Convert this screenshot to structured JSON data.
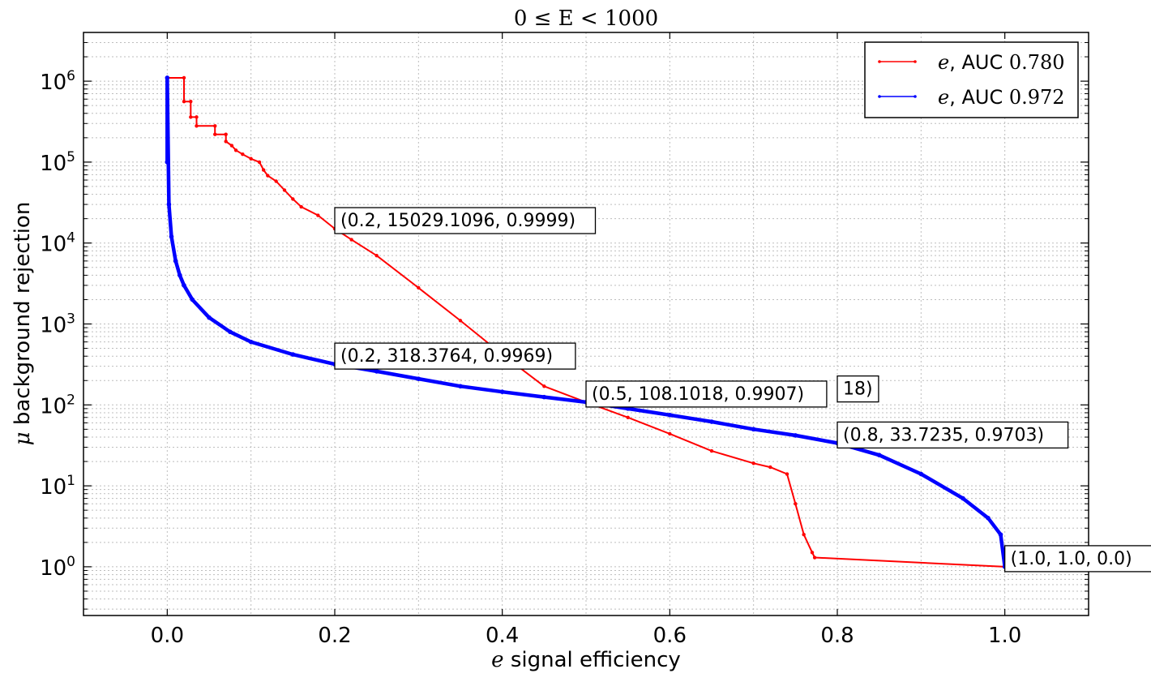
{
  "chart_data": {
    "type": "line",
    "title": "0 ≤ E < 1000",
    "xlabel_symbol": "e",
    "xlabel_text": " signal efficiency",
    "ylabel_symbol": "μ",
    "ylabel_text": " background rejection",
    "xlim": [
      -0.1,
      1.1
    ],
    "ylim": [
      0.25,
      4000000
    ],
    "yscale": "log",
    "grid": true,
    "legend_position": "top-right",
    "x_ticks": [
      {
        "value": 0.0,
        "label": "0.0"
      },
      {
        "value": 0.2,
        "label": "0.2"
      },
      {
        "value": 0.4,
        "label": "0.4"
      },
      {
        "value": 0.6,
        "label": "0.6"
      },
      {
        "value": 0.8,
        "label": "0.8"
      },
      {
        "value": 1.0,
        "label": "1.0"
      }
    ],
    "y_ticks": [
      {
        "value": 1,
        "base": "10",
        "exp": "0"
      },
      {
        "value": 10,
        "base": "10",
        "exp": "1"
      },
      {
        "value": 100,
        "base": "10",
        "exp": "2"
      },
      {
        "value": 1000,
        "base": "10",
        "exp": "3"
      },
      {
        "value": 10000,
        "base": "10",
        "exp": "4"
      },
      {
        "value": 100000,
        "base": "10",
        "exp": "5"
      },
      {
        "value": 1000000,
        "base": "10",
        "exp": "6"
      }
    ],
    "series": [
      {
        "name_symbol": "e",
        "name_text": ", AUC ",
        "name_value": "0.780",
        "color": "#ff0000",
        "x": [
          0.0,
          0.0,
          0.02,
          0.02,
          0.028,
          0.028,
          0.035,
          0.035,
          0.057,
          0.057,
          0.07,
          0.07,
          0.077,
          0.082,
          0.09,
          0.1,
          0.11,
          0.115,
          0.12,
          0.13,
          0.14,
          0.15,
          0.16,
          0.18,
          0.2,
          0.22,
          0.25,
          0.3,
          0.35,
          0.4,
          0.45,
          0.5,
          0.55,
          0.6,
          0.65,
          0.7,
          0.72,
          0.74,
          0.75,
          0.76,
          0.77,
          0.773,
          1.0
        ],
        "y": [
          100000,
          1100000,
          1100000,
          560000,
          560000,
          360000,
          360000,
          280000,
          280000,
          220000,
          220000,
          180000,
          160000,
          140000,
          125000,
          110000,
          100000,
          80000,
          68000,
          58000,
          45000,
          35000,
          28000,
          22000,
          15029.1096,
          11000,
          7000,
          2800,
          1100,
          420,
          170,
          108.1018,
          70,
          44,
          27,
          19,
          17,
          14,
          6,
          2.5,
          1.5,
          1.3,
          1.0
        ]
      },
      {
        "name_symbol": "e",
        "name_text": ", AUC ",
        "name_value": "0.972",
        "color": "#0000ff",
        "x": [
          0.0,
          0.0,
          0.002,
          0.005,
          0.01,
          0.015,
          0.02,
          0.03,
          0.05,
          0.075,
          0.1,
          0.15,
          0.2,
          0.25,
          0.3,
          0.35,
          0.4,
          0.45,
          0.5,
          0.55,
          0.6,
          0.65,
          0.7,
          0.75,
          0.8,
          0.85,
          0.9,
          0.95,
          0.98,
          0.995,
          1.0
        ],
        "y": [
          100000,
          1100000,
          30000,
          12000,
          6000,
          4000,
          3000,
          2000,
          1200,
          800,
          600,
          420,
          318.3764,
          260,
          210,
          170,
          145,
          125,
          108.1018,
          90,
          75,
          62,
          50,
          42,
          33.7235,
          24,
          14,
          7,
          4,
          2.5,
          1.0
        ]
      }
    ],
    "annotations": [
      {
        "text": "(0.2, 15029.1096, 0.9999)",
        "x": 0.2,
        "y": 15029.1096
      },
      {
        "text": "(0.2, 318.3764, 0.9969)",
        "x": 0.2,
        "y": 318.3764
      },
      {
        "text": "(0.5, 108.1018, 0.9907)",
        "x": 0.5,
        "y": 108.1018
      },
      {
        "text": "(0.8, 33.7235, 0.9703)",
        "x": 0.8,
        "y": 33.7235
      },
      {
        "text": "(1.0, 1.0, 0.0)",
        "x": 1.0,
        "y": 1.0
      }
    ],
    "partial_annotation": {
      "text": "18)",
      "x": 0.8,
      "y": 125
    }
  }
}
